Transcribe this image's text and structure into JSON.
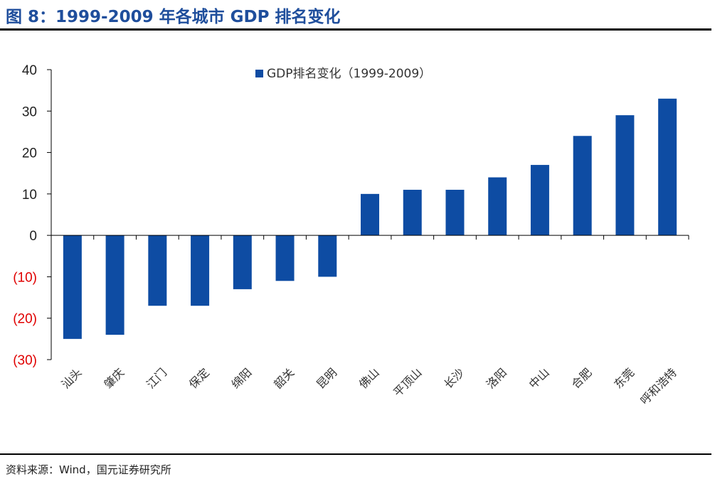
{
  "header": {
    "title": "图 8：1999-2009 年各城市 GDP 排名变化"
  },
  "footer": {
    "source": "资料来源：Wind，国元证券研究所"
  },
  "colors": {
    "bar": "#0e4ca3",
    "negative_tick": "#e00000",
    "positive_tick": "#222222",
    "title": "#1f4e9c"
  },
  "chart_data": {
    "type": "bar",
    "categories": [
      "汕头",
      "肇庆",
      "江门",
      "保定",
      "绵阳",
      "韶关",
      "昆明",
      "佛山",
      "平顶山",
      "长沙",
      "洛阳",
      "中山",
      "合肥",
      "东莞",
      "呼和浩特"
    ],
    "series": [
      {
        "name": "GDP排名变化（1999-2009）",
        "values": [
          -25,
          -24,
          -17,
          -17,
          -13,
          -11,
          -10,
          10,
          11,
          11,
          14,
          17,
          24,
          29,
          33
        ]
      }
    ],
    "yticks": [
      40,
      30,
      20,
      10,
      0,
      -10,
      -20,
      -30
    ],
    "ytick_labels": [
      "40",
      "30",
      "20",
      "10",
      "0",
      "(10)",
      "(20)",
      "(30)"
    ],
    "ylim": [
      -30,
      40
    ],
    "legend_position": "top-center",
    "grid": false
  }
}
